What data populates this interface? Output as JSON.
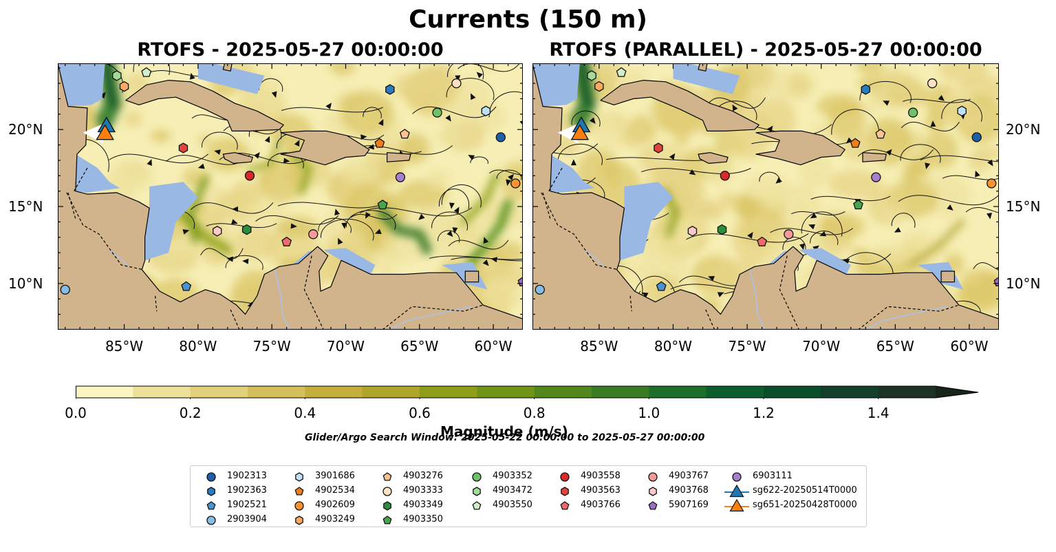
{
  "figure": {
    "title": "Currents (150 m)",
    "colors": {
      "land": "#d2b48c",
      "ocean_mask": "#9ab8e4"
    }
  },
  "panels": [
    {
      "id": "left",
      "title": "RTOFS - 2025-05-27 00:00:00",
      "lat_labels_side": "left"
    },
    {
      "id": "right",
      "title": "RTOFS (PARALLEL) - 2025-05-27 00:00:00",
      "lat_labels_side": "right"
    }
  ],
  "axes": {
    "lon_ticks": [
      {
        "value": -85,
        "label": "85°W"
      },
      {
        "value": -80,
        "label": "80°W"
      },
      {
        "value": -75,
        "label": "75°W"
      },
      {
        "value": -70,
        "label": "70°W"
      },
      {
        "value": -65,
        "label": "65°W"
      },
      {
        "value": -60,
        "label": "60°W"
      }
    ],
    "lat_ticks": [
      {
        "value": 20,
        "label": "20°N"
      },
      {
        "value": 15,
        "label": "15°N"
      },
      {
        "value": 10,
        "label": "10°N"
      }
    ],
    "lon_range": [
      -89.5,
      -58
    ],
    "lat_range": [
      7,
      24.3
    ]
  },
  "colorbar": {
    "label": "Magnitude (m/s)",
    "range": [
      0,
      1.5
    ],
    "extend": "max",
    "ticks": [
      {
        "value": 0.0,
        "label": "0.0"
      },
      {
        "value": 0.2,
        "label": "0.2"
      },
      {
        "value": 0.4,
        "label": "0.4"
      },
      {
        "value": 0.6,
        "label": "0.6"
      },
      {
        "value": 0.8,
        "label": "0.8"
      },
      {
        "value": 1.0,
        "label": "1.0"
      },
      {
        "value": 1.2,
        "label": "1.2"
      },
      {
        "value": 1.4,
        "label": "1.4"
      }
    ],
    "colors": [
      "#fbf5c0",
      "#ede09a",
      "#e2cf7c",
      "#d5bf5a",
      "#c4ae3c",
      "#afa52a",
      "#909d1a",
      "#6f9418",
      "#52881d",
      "#3a7b25",
      "#1f6d2a",
      "#0c5e2c",
      "#0a4e2b",
      "#14402b",
      "#1c3223",
      "#17241a"
    ]
  },
  "search_window": "Glider/Argo Search Window: 2025-05-22 00:00:00 to 2025-05-27 00:00:00",
  "legend": {
    "items": [
      {
        "label": "1902313",
        "marker": "circle",
        "color": "#1f5fa8"
      },
      {
        "label": "1902363",
        "marker": "hexagon",
        "color": "#2b7bc0"
      },
      {
        "label": "1902521",
        "marker": "pentagon",
        "color": "#4a93cc"
      },
      {
        "label": "2903904",
        "marker": "circle",
        "color": "#86bde6"
      },
      {
        "label": "3901686",
        "marker": "hexagon",
        "color": "#bfe0f7"
      },
      {
        "label": "4902534",
        "marker": "pentagon",
        "color": "#f07f1a"
      },
      {
        "label": "4902609",
        "marker": "circle",
        "color": "#fb9232"
      },
      {
        "label": "4903249",
        "marker": "hexagon",
        "color": "#fba863"
      },
      {
        "label": "4903276",
        "marker": "pentagon",
        "color": "#fcc28f"
      },
      {
        "label": "4903333",
        "marker": "circle",
        "color": "#fde1c1"
      },
      {
        "label": "4903349",
        "marker": "hexagon",
        "color": "#2c8d3a"
      },
      {
        "label": "4903350",
        "marker": "pentagon",
        "color": "#48a54c"
      },
      {
        "label": "4903352",
        "marker": "circle",
        "color": "#6fc26a"
      },
      {
        "label": "4903472",
        "marker": "hexagon",
        "color": "#a2da97"
      },
      {
        "label": "4903550",
        "marker": "pentagon",
        "color": "#d2f0c7"
      },
      {
        "label": "4903558",
        "marker": "circle",
        "color": "#d42a2a"
      },
      {
        "label": "4903563",
        "marker": "hexagon",
        "color": "#e0423c"
      },
      {
        "label": "4903766",
        "marker": "pentagon",
        "color": "#ee6b6b"
      },
      {
        "label": "4903767",
        "marker": "circle",
        "color": "#f49a9a"
      },
      {
        "label": "4903768",
        "marker": "hexagon",
        "color": "#fbc9c9"
      },
      {
        "label": "5907169",
        "marker": "pentagon",
        "color": "#9a6fc4"
      },
      {
        "label": "6903111",
        "marker": "circle",
        "color": "#a77fcf"
      },
      {
        "label": "sg622-20250514T0000",
        "marker": "triangle",
        "color": "#1f77b4"
      },
      {
        "label": "sg651-20250428T0000",
        "marker": "triangle",
        "color": "#ff7f0e"
      }
    ]
  },
  "markers": [
    {
      "marker": "circle",
      "color": "#1f5fa8",
      "left": {
        "lon": -59.5,
        "lat": 19.5
      },
      "right": {
        "lon": -59.5,
        "lat": 19.5
      }
    },
    {
      "marker": "hexagon",
      "color": "#2b7bc0",
      "left": {
        "lon": -67.0,
        "lat": 22.6
      },
      "right": {
        "lon": -67.0,
        "lat": 22.6
      }
    },
    {
      "marker": "pentagon",
      "color": "#4a93cc",
      "left": {
        "lon": -80.8,
        "lat": 9.8
      },
      "right": {
        "lon": -80.8,
        "lat": 9.8
      }
    },
    {
      "marker": "circle",
      "color": "#86bde6",
      "left": {
        "lon": -89.0,
        "lat": 9.6
      },
      "right": {
        "lon": -89.0,
        "lat": 9.6
      }
    },
    {
      "marker": "hexagon",
      "color": "#bfe0f7",
      "left": {
        "lon": -60.5,
        "lat": 21.2
      },
      "right": {
        "lon": -60.5,
        "lat": 21.2
      }
    },
    {
      "marker": "pentagon",
      "color": "#f07f1a",
      "left": {
        "lon": -67.7,
        "lat": 19.1
      },
      "right": {
        "lon": -67.7,
        "lat": 19.1
      }
    },
    {
      "marker": "circle",
      "color": "#fb9232",
      "left": {
        "lon": -58.5,
        "lat": 16.5
      },
      "right": {
        "lon": -58.5,
        "lat": 16.5
      }
    },
    {
      "marker": "hexagon",
      "color": "#fba863",
      "left": {
        "lon": -85.0,
        "lat": 22.8
      },
      "right": {
        "lon": -85.0,
        "lat": 22.8
      }
    },
    {
      "marker": "pentagon",
      "color": "#fcc28f",
      "left": {
        "lon": -66.0,
        "lat": 19.7
      },
      "right": {
        "lon": -66.0,
        "lat": 19.7
      }
    },
    {
      "marker": "circle",
      "color": "#fde1c1",
      "left": {
        "lon": -62.5,
        "lat": 23.0
      },
      "right": {
        "lon": -62.5,
        "lat": 23.0
      }
    },
    {
      "marker": "hexagon",
      "color": "#2c8d3a",
      "left": {
        "lon": -76.7,
        "lat": 13.5
      },
      "right": {
        "lon": -76.7,
        "lat": 13.5
      }
    },
    {
      "marker": "pentagon",
      "color": "#48a54c",
      "left": {
        "lon": -67.5,
        "lat": 15.1
      },
      "right": {
        "lon": -67.5,
        "lat": 15.1
      }
    },
    {
      "marker": "circle",
      "color": "#6fc26a",
      "left": {
        "lon": -63.8,
        "lat": 21.1
      },
      "right": {
        "lon": -63.8,
        "lat": 21.1
      }
    },
    {
      "marker": "hexagon",
      "color": "#a2da97",
      "left": {
        "lon": -85.5,
        "lat": 23.5
      },
      "right": {
        "lon": -85.5,
        "lat": 23.5
      }
    },
    {
      "marker": "pentagon",
      "color": "#d2f0c7",
      "left": {
        "lon": -83.5,
        "lat": 23.7
      },
      "right": {
        "lon": -83.5,
        "lat": 23.7
      }
    },
    {
      "marker": "circle",
      "color": "#d42a2a",
      "left": {
        "lon": -76.5,
        "lat": 17.0
      },
      "right": {
        "lon": -76.5,
        "lat": 17.0
      }
    },
    {
      "marker": "hexagon",
      "color": "#e0423c",
      "left": {
        "lon": -81.0,
        "lat": 18.8
      },
      "right": {
        "lon": -81.0,
        "lat": 18.8
      }
    },
    {
      "marker": "pentagon",
      "color": "#ee6b6b",
      "left": {
        "lon": -74.0,
        "lat": 12.7
      },
      "right": {
        "lon": -74.0,
        "lat": 12.7
      }
    },
    {
      "marker": "circle",
      "color": "#f49a9a",
      "left": {
        "lon": -72.2,
        "lat": 13.2
      },
      "right": {
        "lon": -72.2,
        "lat": 13.2
      }
    },
    {
      "marker": "hexagon",
      "color": "#fbc9c9",
      "left": {
        "lon": -78.7,
        "lat": 13.4
      },
      "right": {
        "lon": -78.7,
        "lat": 13.4
      }
    },
    {
      "marker": "pentagon",
      "color": "#9a6fc4",
      "left": {
        "lon": -58.0,
        "lat": 10.1
      },
      "right": {
        "lon": -58.0,
        "lat": 10.1
      }
    },
    {
      "marker": "circle",
      "color": "#a77fcf",
      "left": {
        "lon": -66.3,
        "lat": 16.9
      },
      "right": {
        "lon": -66.3,
        "lat": 16.9
      }
    },
    {
      "marker": "triangle",
      "color": "#1f77b4",
      "left": {
        "lon": -86.2,
        "lat": 20.3
      },
      "right": {
        "lon": -86.2,
        "lat": 20.3
      }
    },
    {
      "marker": "triangle",
      "color": "#ff7f0e",
      "left": {
        "lon": -86.3,
        "lat": 19.8
      },
      "right": {
        "lon": -86.3,
        "lat": 19.8
      }
    }
  ]
}
